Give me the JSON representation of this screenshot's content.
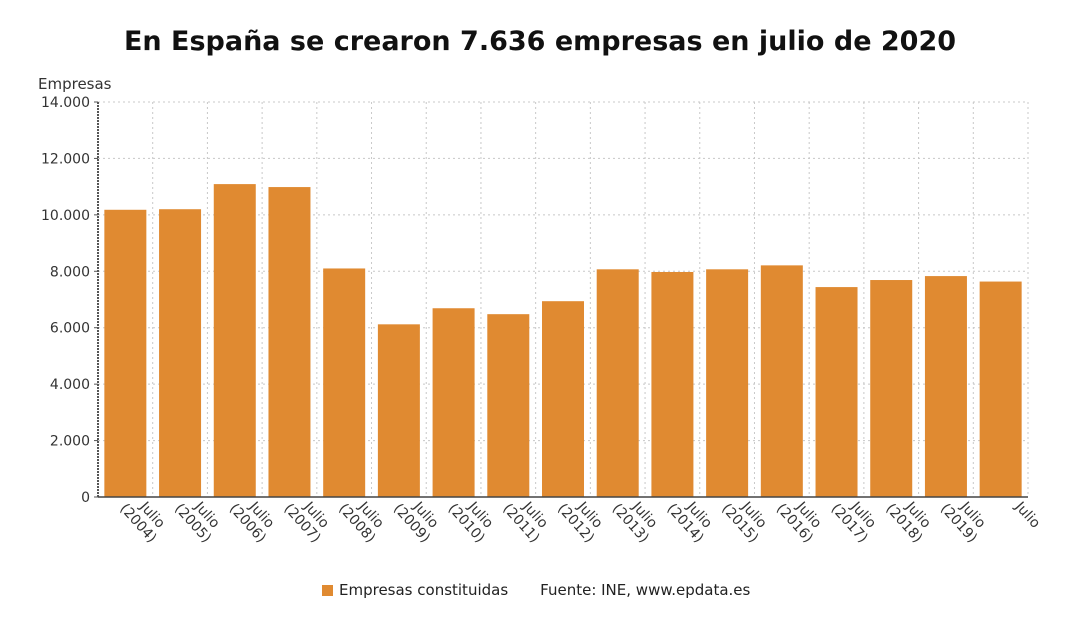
{
  "chart_data": {
    "type": "bar",
    "title": "En España se crearon 7.636 empresas en julio de 2020",
    "ylabel": "Empresas",
    "xlabel": "",
    "ylim": [
      0,
      14000
    ],
    "yticks": [
      0,
      2000,
      4000,
      6000,
      8000,
      10000,
      12000,
      14000
    ],
    "ytick_labels": [
      "0",
      "2.000",
      "4.000",
      "6.000",
      "8.000",
      "10.000",
      "12.000",
      "14.000"
    ],
    "categories": [
      [
        "Julio",
        "(2004)"
      ],
      [
        "Julio",
        "(2005)"
      ],
      [
        "Julio",
        "(2006)"
      ],
      [
        "Julio",
        "(2007)"
      ],
      [
        "Julio",
        "(2008)"
      ],
      [
        "Julio",
        "(2009)"
      ],
      [
        "Julio",
        "(2010)"
      ],
      [
        "Julio",
        "(2011)"
      ],
      [
        "Julio",
        "(2012)"
      ],
      [
        "Julio",
        "(2013)"
      ],
      [
        "Julio",
        "(2014)"
      ],
      [
        "Julio",
        "(2015)"
      ],
      [
        "Julio",
        "(2016)"
      ],
      [
        "Julio",
        "(2017)"
      ],
      [
        "Julio",
        "(2018)"
      ],
      [
        "Julio",
        "(2019)"
      ],
      [
        "Julio"
      ]
    ],
    "series": [
      {
        "name": "Empresas constituidas",
        "color": "#e08a31",
        "values": [
          10180,
          10200,
          11090,
          10985,
          8100,
          6120,
          6690,
          6480,
          6940,
          8070,
          7975,
          8070,
          8210,
          7440,
          7690,
          7830,
          7636
        ]
      }
    ],
    "grid": true,
    "legend_position": "bottom",
    "source": "Fuente: INE, www.epdata.es"
  }
}
